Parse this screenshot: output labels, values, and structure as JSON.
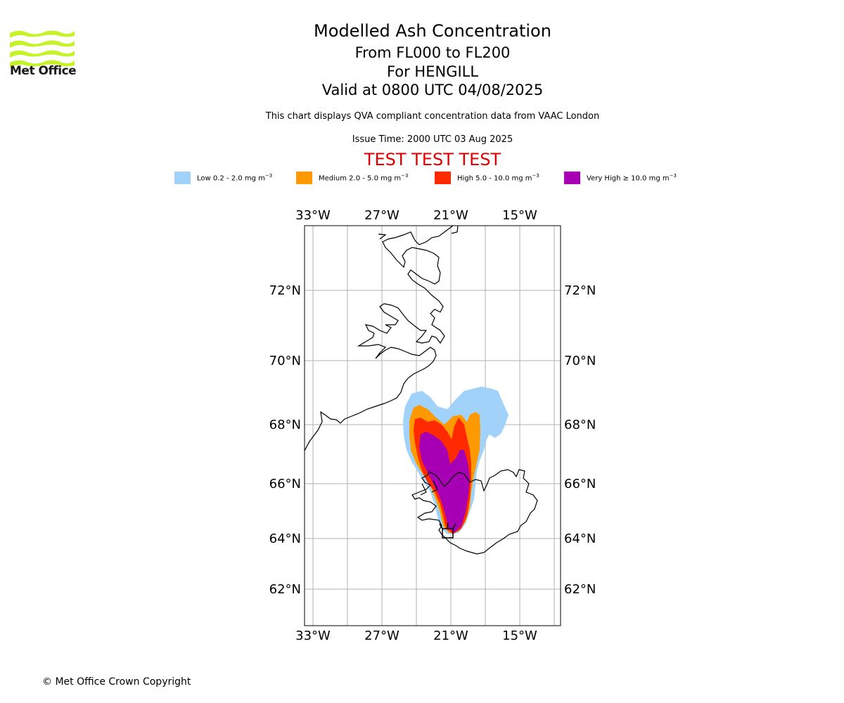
{
  "header": {
    "title": "Modelled Ash Concentration",
    "levels": "From FL000 to FL200",
    "volcano": "For HENGILL",
    "valid": "Valid at 0800 UTC 04/08/2025",
    "description": "This chart displays QVA compliant concentration data from VAAC London",
    "issue_time": "Issue Time: 2000 UTC 03 Aug 2025",
    "test_banner": "TEST TEST TEST"
  },
  "logo": {
    "text": "Met Office",
    "color": "#c6f22a"
  },
  "legend": [
    {
      "label": "Low 0.2 - 2.0 mg m",
      "color": "#a1d3fa"
    },
    {
      "label": "Medium 2.0 - 5.0 mg m",
      "color": "#ff9900"
    },
    {
      "label": "High 5.0 - 10.0 mg m",
      "color": "#ff2a00"
    },
    {
      "label": "Very High ≥ 10.0 mg m",
      "color": "#a700b4"
    }
  ],
  "legend_unit_exponent": "−3",
  "map": {
    "lon_labels": [
      "33°W",
      "27°W",
      "21°W",
      "15°W"
    ],
    "lat_labels": [
      "72°N",
      "70°N",
      "68°N",
      "66°N",
      "64°N",
      "62°N"
    ],
    "colors": {
      "gridline": "#b0b0b0",
      "coast": "#000000"
    }
  },
  "footer": {
    "copyright": "© Met Office Crown Copyright"
  }
}
